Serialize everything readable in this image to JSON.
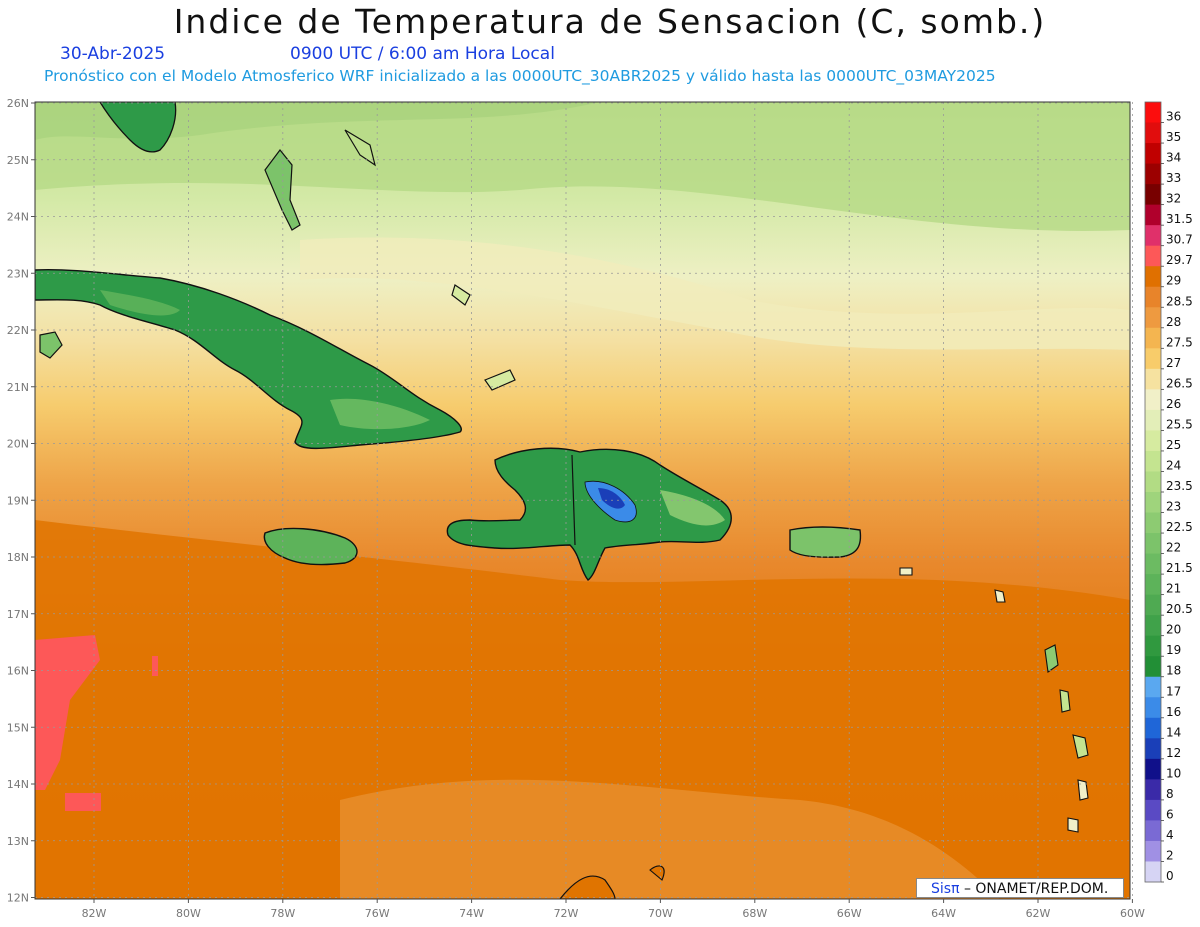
{
  "title": "Indice de Temperatura de Sensacion (C, somb.)",
  "date_label": "30-Abr-2025",
  "time_label": "0900 UTC / 6:00 am Hora Local",
  "forecast_label": "Pronóstico con el Modelo Atmosferico WRF inicializado a las 0000UTC_30ABR2025 y válido hasta las  0000UTC_03MAY2025",
  "credit": {
    "brand": "Sisπ",
    "text": " – ONAMET/REP.DOM."
  },
  "lat_ticks": [
    "26N",
    "25N",
    "24N",
    "23N",
    "22N",
    "21N",
    "20N",
    "19N",
    "18N",
    "17N",
    "16N",
    "15N",
    "14N",
    "13N",
    "12N"
  ],
  "lon_ticks": [
    "82W",
    "80W",
    "78W",
    "76W",
    "74W",
    "72W",
    "70W",
    "68W",
    "66W",
    "64W",
    "62W",
    "60W"
  ],
  "colorbar": {
    "labels": [
      "36",
      "35",
      "34",
      "33",
      "32",
      "31.5",
      "30.7",
      "29.7",
      "29",
      "28.5",
      "28",
      "27.5",
      "27",
      "26.5",
      "26",
      "25.5",
      "25",
      "24",
      "23.5",
      "23",
      "22.5",
      "22",
      "21.5",
      "21",
      "20.5",
      "20",
      "19",
      "18",
      "17",
      "16",
      "14",
      "12",
      "10",
      "8",
      "6",
      "4",
      "2",
      "0"
    ],
    "colors": [
      "#fc0d0d",
      "#e10d0d",
      "#c00000",
      "#9c0000",
      "#780000",
      "#b0002c",
      "#e0306a",
      "#fd5858",
      "#e07000",
      "#e8842a",
      "#ee9a40",
      "#f4b550",
      "#f8cc6a",
      "#f6e2a0",
      "#f1f0c8",
      "#e3eeb8",
      "#d6eba0",
      "#c4e490",
      "#b2dc84",
      "#9fd47c",
      "#8dcb72",
      "#7cc36a",
      "#6cbb62",
      "#5db35a",
      "#4faa52",
      "#40a24a",
      "#30993f",
      "#228f36",
      "#5aa8f0",
      "#3b8be8",
      "#1f66d8",
      "#1a3fb8",
      "#10108a",
      "#3a2aa8",
      "#5a4ac4",
      "#7a6ad4",
      "#a090e4",
      "#d6d4f4"
    ]
  },
  "map_colors": {
    "sea_north": "#bfe08e",
    "sea_mid": "#f2f0c4",
    "sea_south": "#e07400",
    "land": "#2e9a48",
    "hot": "#fd5858"
  }
}
